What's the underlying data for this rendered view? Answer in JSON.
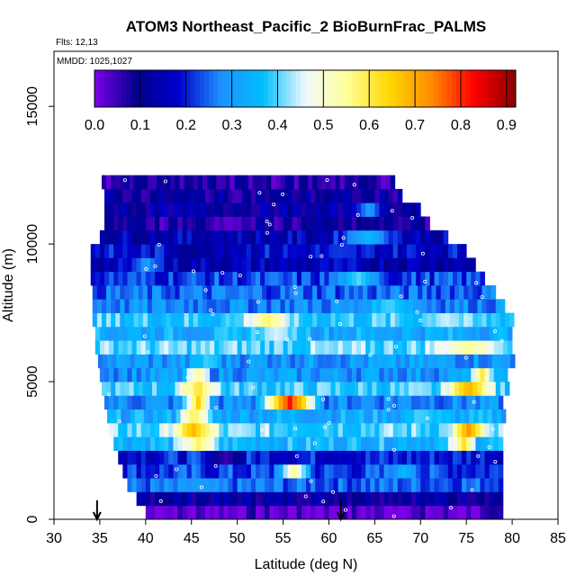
{
  "chart_data": {
    "type": "heatmap",
    "title": "ATOM3 Northeast_Pacific_2 BioBurnFrac_PALMS",
    "flights_label": "Flts: 12,13",
    "dates_label": "MMDD: 1025,1027",
    "xlabel": "Latitude (deg N)",
    "ylabel": "Altitude (m)",
    "xlim": [
      30,
      85
    ],
    "ylim": [
      0,
      17000
    ],
    "xticks": [
      "30",
      "35",
      "40",
      "45",
      "50",
      "55",
      "60",
      "65",
      "70",
      "75",
      "80",
      "85"
    ],
    "yticks": [
      "0",
      "5000",
      "10000",
      "15000"
    ],
    "colorbar": {
      "min": 0.0,
      "max": 0.92,
      "tick_values": [
        0.0,
        0.1,
        0.2,
        0.3,
        0.4,
        0.5,
        0.6,
        0.7,
        0.8,
        0.9
      ],
      "tick_labels": [
        "0.0",
        "0.1",
        "0.2",
        "0.3",
        "0.4",
        "0.5",
        "0.6",
        "0.7",
        "0.8",
        "0.9"
      ],
      "colors": [
        "#7a00e6",
        "#00008b",
        "#0000cd",
        "#1e90ff",
        "#00bfff",
        "#f0f8ff",
        "#ffff99",
        "#ffd700",
        "#ff8c00",
        "#ff0000",
        "#8b0000"
      ]
    },
    "markers": [
      {
        "type": "arrow-down",
        "latitude": 34.7
      },
      {
        "type": "arrow-down",
        "latitude": 61.3
      }
    ],
    "layers": [
      {
        "alt": [
          0,
          500
        ],
        "lat": [
          40.0,
          79.0
        ],
        "base": 0.02,
        "hot": []
      },
      {
        "alt": [
          500,
          1000
        ],
        "lat": [
          39.0,
          79.0
        ],
        "base": 0.12,
        "hot": []
      },
      {
        "alt": [
          1000,
          1500
        ],
        "lat": [
          38.0,
          79.0
        ],
        "base": 0.25,
        "hot": [
          [
            43,
            48,
            0.3
          ]
        ]
      },
      {
        "alt": [
          1500,
          2000
        ],
        "lat": [
          37.5,
          79.0
        ],
        "base": 0.22,
        "hot": [
          [
            54,
            58,
            0.55
          ],
          [
            66,
            70,
            0.35
          ]
        ]
      },
      {
        "alt": [
          2000,
          2500
        ],
        "lat": [
          37.0,
          79.0
        ],
        "base": 0.2,
        "hot": [
          [
            46,
            51,
            0.05
          ]
        ]
      },
      {
        "alt": [
          2500,
          3000
        ],
        "lat": [
          36.5,
          79.0
        ],
        "base": 0.35,
        "hot": [
          [
            43,
            48,
            0.58
          ],
          [
            73,
            76,
            0.62
          ]
        ]
      },
      {
        "alt": [
          3000,
          3500
        ],
        "lat": [
          36.0,
          79.0
        ],
        "base": 0.4,
        "hot": [
          [
            42,
            48,
            0.68
          ],
          [
            73,
            77,
            0.72
          ]
        ]
      },
      {
        "alt": [
          3500,
          4000
        ],
        "lat": [
          35.8,
          79.0
        ],
        "base": 0.33,
        "hot": [
          [
            43,
            47,
            0.6
          ],
          [
            68,
            72,
            0.4
          ]
        ]
      },
      {
        "alt": [
          4000,
          4500
        ],
        "lat": [
          35.5,
          79.0
        ],
        "base": 0.28,
        "hot": [
          [
            52,
            59,
            0.82
          ],
          [
            44,
            47,
            0.65
          ]
        ]
      },
      {
        "alt": [
          4500,
          5000
        ],
        "lat": [
          35.2,
          79.5
        ],
        "base": 0.38,
        "hot": [
          [
            43,
            48,
            0.62
          ],
          [
            72,
            78,
            0.7
          ]
        ]
      },
      {
        "alt": [
          5000,
          5500
        ],
        "lat": [
          35.0,
          79.5
        ],
        "base": 0.3,
        "hot": [
          [
            44,
            47,
            0.55
          ],
          [
            75,
            78,
            0.6
          ]
        ]
      },
      {
        "alt": [
          5500,
          6000
        ],
        "lat": [
          34.8,
          80.0
        ],
        "base": 0.3,
        "hot": [
          [
            45,
            48,
            0.4
          ]
        ]
      },
      {
        "alt": [
          6000,
          6500
        ],
        "lat": [
          34.5,
          80.0
        ],
        "base": 0.4,
        "hot": [
          [
            70,
            80,
            0.55
          ]
        ]
      },
      {
        "alt": [
          6500,
          7000
        ],
        "lat": [
          34.5,
          80.0
        ],
        "base": 0.33,
        "hot": [
          [
            50,
            58,
            0.45
          ]
        ]
      },
      {
        "alt": [
          7000,
          7500
        ],
        "lat": [
          34.2,
          80.0
        ],
        "base": 0.38,
        "hot": [
          [
            50,
            56,
            0.58
          ],
          [
            70,
            75,
            0.45
          ]
        ]
      },
      {
        "alt": [
          7500,
          8000
        ],
        "lat": [
          34.2,
          79.0
        ],
        "base": 0.28,
        "hot": [
          [
            63,
            70,
            0.4
          ]
        ]
      },
      {
        "alt": [
          8000,
          8500
        ],
        "lat": [
          34.2,
          78.0
        ],
        "base": 0.25,
        "hot": []
      },
      {
        "alt": [
          8500,
          9000
        ],
        "lat": [
          34.0,
          77.0
        ],
        "base": 0.22,
        "hot": [
          [
            60,
            66,
            0.4
          ]
        ]
      },
      {
        "alt": [
          9000,
          9500
        ],
        "lat": [
          34.0,
          76.0
        ],
        "base": 0.15,
        "hot": [
          [
            38,
            42,
            0.3
          ]
        ]
      },
      {
        "alt": [
          9500,
          10000
        ],
        "lat": [
          34.0,
          75.0
        ],
        "base": 0.18,
        "hot": [
          [
            42,
            48,
            0.1
          ]
        ]
      },
      {
        "alt": [
          10000,
          10500
        ],
        "lat": [
          35.0,
          73.0
        ],
        "base": 0.15,
        "hot": [
          [
            60,
            68,
            0.35
          ]
        ]
      },
      {
        "alt": [
          10500,
          11000
        ],
        "lat": [
          35.5,
          71.0
        ],
        "base": 0.08,
        "hot": [
          [
            46,
            52,
            0.02
          ]
        ]
      },
      {
        "alt": [
          11000,
          11500
        ],
        "lat": [
          35.5,
          70.0
        ],
        "base": 0.12,
        "hot": [
          [
            62,
            66,
            0.3
          ]
        ]
      },
      {
        "alt": [
          11500,
          12000
        ],
        "lat": [
          35.5,
          68.0
        ],
        "base": 0.1,
        "hot": []
      },
      {
        "alt": [
          12000,
          12500
        ],
        "lat": [
          35.2,
          67.0
        ],
        "base": 0.07,
        "hot": []
      }
    ]
  }
}
